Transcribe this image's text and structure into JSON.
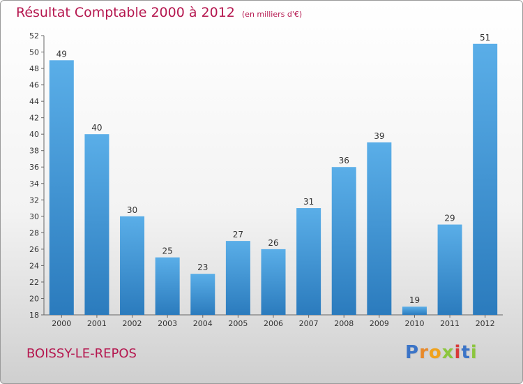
{
  "header": {
    "title": "Résultat Comptable 2000 à 2012",
    "subtitle": "(en milliers d'€)"
  },
  "footer": {
    "city": "BOISSY-LE-REPOS",
    "logo": [
      "P",
      "r",
      "o",
      "x",
      "i",
      "t",
      "i"
    ]
  },
  "colors": {
    "title": "#b5174f",
    "bar_light": "#5aaee8",
    "bar_dark": "#2b7bbd",
    "logo": [
      "#3b74c7",
      "#e8892a",
      "#f0a21c",
      "#8cc63e",
      "#d83a3a",
      "#3b74c7",
      "#8cc63e"
    ]
  },
  "chart_data": {
    "type": "bar",
    "title": "Résultat Comptable 2000 à 2012",
    "subtitle": "(en milliers d'€)",
    "categories": [
      "2000",
      "2001",
      "2002",
      "2003",
      "2004",
      "2005",
      "2006",
      "2007",
      "2008",
      "2009",
      "2010",
      "2011",
      "2012"
    ],
    "values": [
      49,
      40,
      30,
      25,
      23,
      27,
      26,
      31,
      36,
      39,
      19,
      29,
      51
    ],
    "xlabel": "",
    "ylabel": "",
    "ylim": [
      18,
      52
    ],
    "yticks": [
      18,
      20,
      22,
      24,
      26,
      28,
      30,
      32,
      34,
      36,
      38,
      40,
      42,
      44,
      46,
      48,
      50,
      52
    ],
    "grid": false
  }
}
